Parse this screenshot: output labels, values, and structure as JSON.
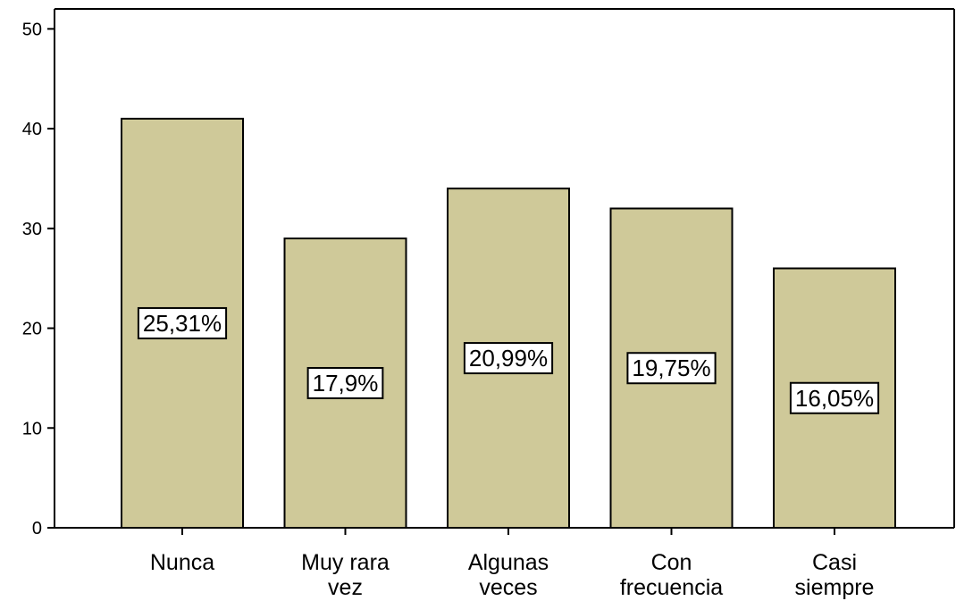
{
  "chart_data": {
    "type": "bar",
    "categories": [
      [
        "Nunca"
      ],
      [
        "Muy rara",
        "vez"
      ],
      [
        "Algunas",
        "veces"
      ],
      [
        "Con",
        "frecuencia"
      ],
      [
        "Casi",
        "siempre"
      ]
    ],
    "values": [
      41,
      29,
      34,
      32,
      26
    ],
    "data_labels": [
      "25,31%",
      "17,9%",
      "20,99%",
      "19,75%",
      "16,05%"
    ],
    "ylim": [
      0,
      52
    ],
    "yticks": [
      0,
      10,
      20,
      30,
      40,
      50
    ],
    "ytick_labels": [
      "0",
      "10",
      "20",
      "30",
      "40",
      "50"
    ],
    "title": "",
    "xlabel": "",
    "ylabel": "",
    "grid": false,
    "colors": {
      "bar_fill": "#cfc999",
      "bar_stroke": "#000000",
      "label_box_fill": "#ffffff"
    }
  }
}
